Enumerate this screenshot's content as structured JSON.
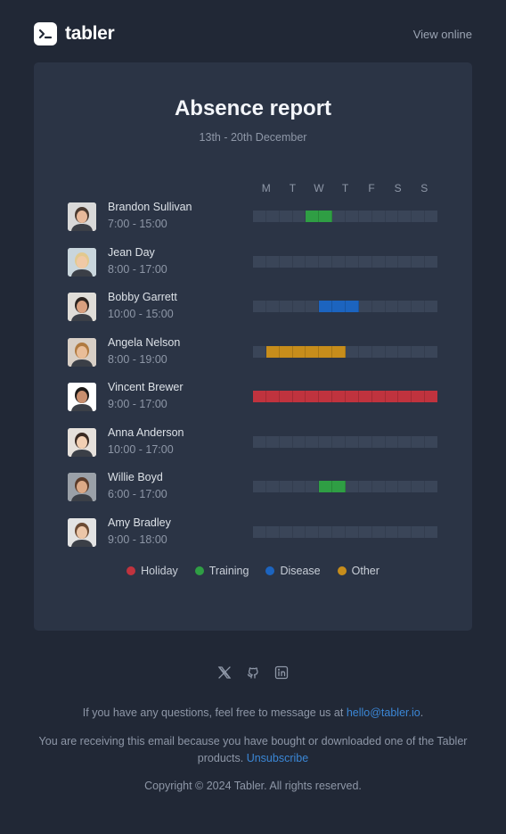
{
  "header": {
    "brand_name": "tabler",
    "view_online": "View online"
  },
  "report": {
    "title": "Absence report",
    "date_range": "13th - 20th December",
    "days": [
      "M",
      "T",
      "W",
      "T",
      "F",
      "S",
      "S"
    ],
    "employees": [
      {
        "name": "Brandon Sullivan",
        "hours": "7:00 - 15:00",
        "absence": "Training",
        "segments": [
          4,
          5
        ]
      },
      {
        "name": "Jean Day",
        "hours": "8:00 - 17:00",
        "absence": "",
        "segments": []
      },
      {
        "name": "Bobby Garrett",
        "hours": "10:00 - 15:00",
        "absence": "Disease",
        "segments": [
          5,
          6,
          7
        ]
      },
      {
        "name": "Angela Nelson",
        "hours": "8:00 - 19:00",
        "absence": "Other",
        "segments": [
          1,
          2,
          3,
          4,
          5,
          6
        ]
      },
      {
        "name": "Vincent Brewer",
        "hours": "9:00 - 17:00",
        "absence": "Holiday",
        "segments": [
          0,
          1,
          2,
          3,
          4,
          5,
          6,
          7,
          8,
          9,
          10,
          11,
          12,
          13
        ]
      },
      {
        "name": "Anna Anderson",
        "hours": "10:00 - 17:00",
        "absence": "",
        "segments": []
      },
      {
        "name": "Willie Boyd",
        "hours": "6:00 - 17:00",
        "absence": "Training",
        "segments": [
          5,
          6
        ]
      },
      {
        "name": "Amy Bradley",
        "hours": "9:00 - 18:00",
        "absence": "",
        "segments": []
      }
    ],
    "legend": [
      {
        "label": "Holiday",
        "color": "#c0333e"
      },
      {
        "label": "Training",
        "color": "#2f9e44"
      },
      {
        "label": "Disease",
        "color": "#1c64bf"
      },
      {
        "label": "Other",
        "color": "#c78d1b"
      }
    ]
  },
  "social": [
    "x-icon",
    "github-icon",
    "linkedin-icon"
  ],
  "footer": {
    "questions_prefix": "If you have any questions, feel free to message us at ",
    "email": "hello@tabler.io",
    "questions_suffix": ".",
    "receiving": "You are receiving this email because you have bought or downloaded one of the Tabler products.",
    "unsubscribe": "Unsubscribe",
    "copyright": "Copyright © 2024 Tabler. All rights reserved."
  }
}
